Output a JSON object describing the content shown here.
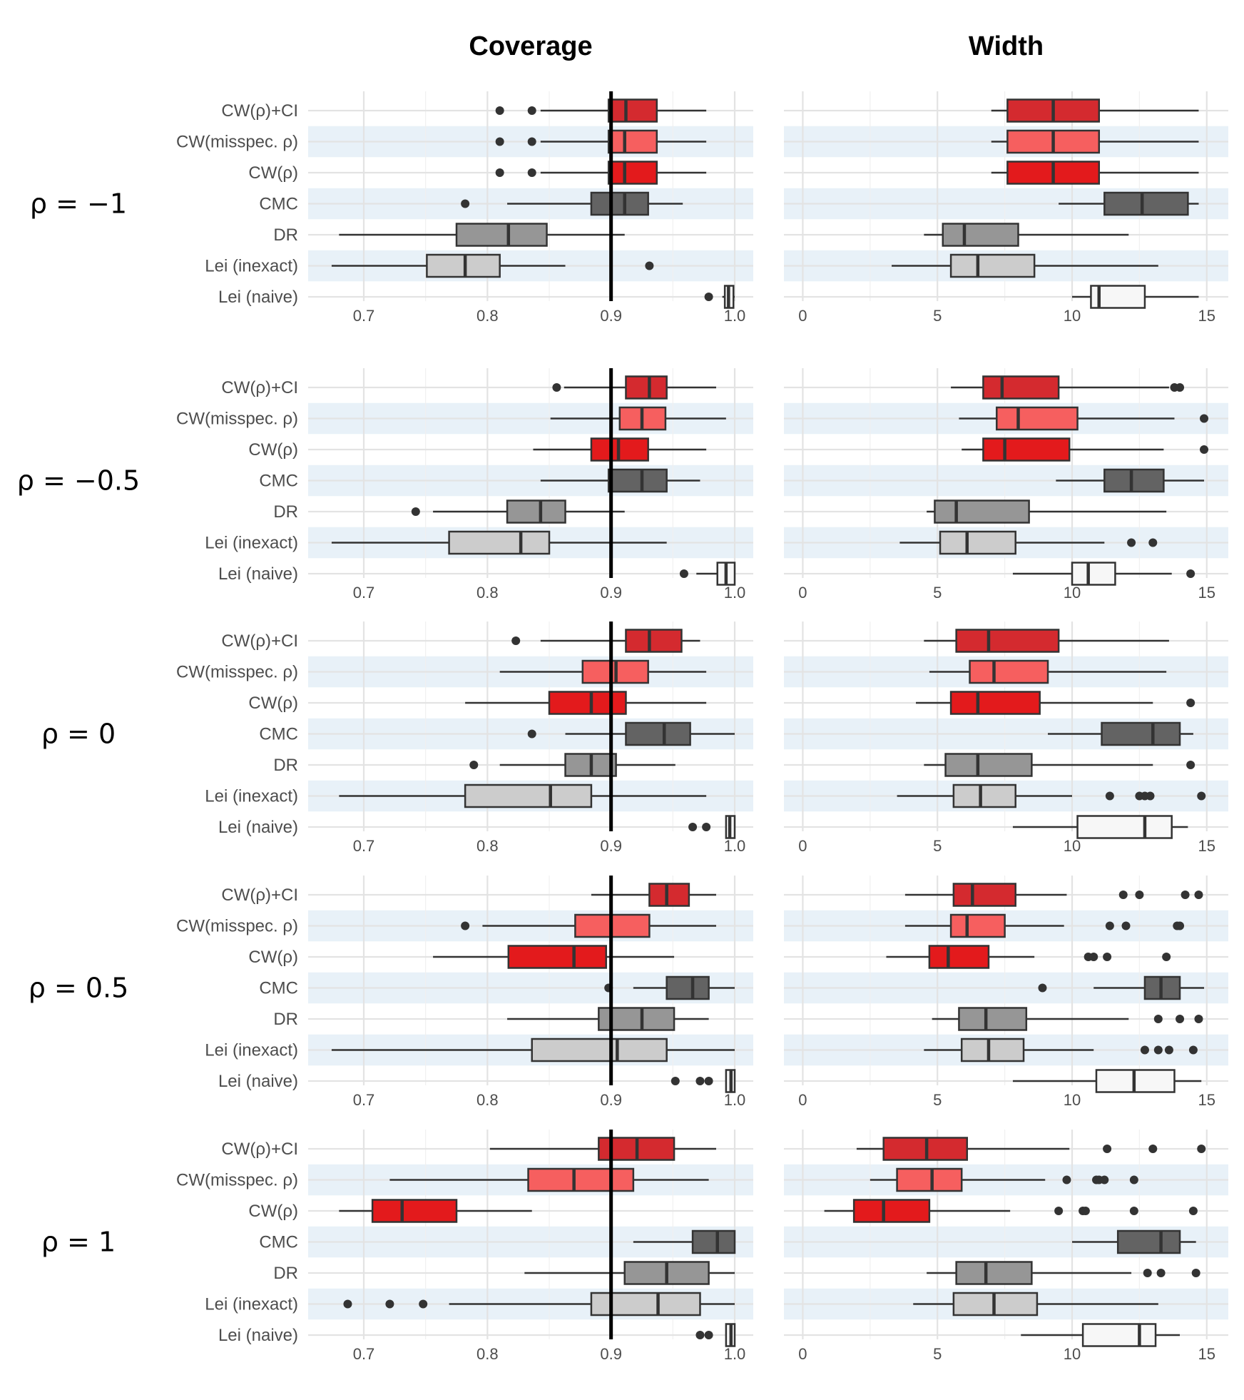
{
  "chart_data": {
    "type": "boxplot",
    "title": "",
    "column_titles": [
      "Coverage",
      "Width"
    ],
    "row_labels": [
      "ρ = −1",
      "ρ = −0.5",
      "ρ = 0",
      "ρ = 0.5",
      "ρ = 1"
    ],
    "methods": [
      "CW(ρ)+CI",
      "CW(misspec. ρ)",
      "CW(ρ)",
      "CMC",
      "DR",
      "Lei (inexact)",
      "Lei (naive)"
    ],
    "colors": {
      "CW(ρ)+CI": "#d42a2f",
      "CW(misspec. ρ)": "#f65f5f",
      "CW(ρ)": "#e31a1c",
      "CMC": "#636363",
      "DR": "#969696",
      "Lei (inexact)": "#cccccc",
      "Lei (naive)": "#f7f7f7"
    },
    "band_color": "#e8f1f8",
    "reference_line": {
      "panel": "Coverage",
      "x": 0.9
    },
    "axes": {
      "Coverage": {
        "xlim": [
          0.655,
          1.015
        ],
        "ticks": [
          0.7,
          0.8,
          0.9,
          1.0
        ],
        "tick_labels": [
          "0.7",
          "0.8",
          "0.9",
          "1.0"
        ]
      },
      "Width": {
        "xlim": [
          -0.7,
          15.8
        ],
        "ticks": [
          0,
          5,
          10,
          15
        ],
        "tick_labels": [
          "0",
          "5",
          "10",
          "15"
        ]
      }
    },
    "coverage": [
      [
        {
          "lw": 0.843,
          "q1": 0.898,
          "med": 0.912,
          "q3": 0.937,
          "uw": 0.977,
          "out": [
            0.81,
            0.836
          ]
        },
        {
          "lw": 0.843,
          "q1": 0.898,
          "med": 0.911,
          "q3": 0.937,
          "uw": 0.977,
          "out": [
            0.81,
            0.836
          ]
        },
        {
          "lw": 0.843,
          "q1": 0.898,
          "med": 0.911,
          "q3": 0.937,
          "uw": 0.977,
          "out": [
            0.81,
            0.836
          ]
        },
        {
          "lw": 0.816,
          "q1": 0.884,
          "med": 0.911,
          "q3": 0.93,
          "uw": 0.958,
          "out": [
            0.782
          ]
        },
        {
          "lw": 0.68,
          "q1": 0.775,
          "med": 0.817,
          "q3": 0.848,
          "uw": 0.911,
          "out": []
        },
        {
          "lw": 0.674,
          "q1": 0.751,
          "med": 0.782,
          "q3": 0.81,
          "uw": 0.863,
          "out": [
            0.931
          ]
        },
        {
          "lw": 0.99,
          "q1": 0.992,
          "med": 0.995,
          "q3": 0.999,
          "uw": 1.0,
          "out": [
            0.979
          ]
        }
      ],
      [
        {
          "lw": 0.862,
          "q1": 0.912,
          "med": 0.931,
          "q3": 0.945,
          "uw": 0.985,
          "out": [
            0.856
          ]
        },
        {
          "lw": 0.851,
          "q1": 0.907,
          "med": 0.925,
          "q3": 0.944,
          "uw": 0.993,
          "out": []
        },
        {
          "lw": 0.837,
          "q1": 0.884,
          "med": 0.906,
          "q3": 0.93,
          "uw": 0.977,
          "out": []
        },
        {
          "lw": 0.843,
          "q1": 0.898,
          "med": 0.925,
          "q3": 0.945,
          "uw": 0.972,
          "out": []
        },
        {
          "lw": 0.756,
          "q1": 0.816,
          "med": 0.843,
          "q3": 0.863,
          "uw": 0.911,
          "out": [
            0.742
          ]
        },
        {
          "lw": 0.674,
          "q1": 0.769,
          "med": 0.827,
          "q3": 0.85,
          "uw": 0.945,
          "out": []
        },
        {
          "lw": 0.969,
          "q1": 0.986,
          "med": 0.993,
          "q3": 1.0,
          "uw": 1.0,
          "out": [
            0.959
          ]
        }
      ],
      [
        {
          "lw": 0.843,
          "q1": 0.912,
          "med": 0.931,
          "q3": 0.957,
          "uw": 0.972,
          "out": [
            0.823
          ]
        },
        {
          "lw": 0.81,
          "q1": 0.877,
          "med": 0.904,
          "q3": 0.93,
          "uw": 0.977,
          "out": []
        },
        {
          "lw": 0.782,
          "q1": 0.85,
          "med": 0.884,
          "q3": 0.912,
          "uw": 0.977,
          "out": []
        },
        {
          "lw": 0.863,
          "q1": 0.912,
          "med": 0.943,
          "q3": 0.964,
          "uw": 1.0,
          "out": [
            0.836
          ]
        },
        {
          "lw": 0.81,
          "q1": 0.863,
          "med": 0.884,
          "q3": 0.904,
          "uw": 0.952,
          "out": [
            0.789
          ]
        },
        {
          "lw": 0.68,
          "q1": 0.782,
          "med": 0.851,
          "q3": 0.884,
          "uw": 0.977,
          "out": []
        },
        {
          "lw": 0.993,
          "q1": 0.993,
          "med": 0.996,
          "q3": 1.0,
          "uw": 1.0,
          "out": [
            0.966,
            0.977
          ]
        }
      ],
      [
        {
          "lw": 0.884,
          "q1": 0.931,
          "med": 0.945,
          "q3": 0.963,
          "uw": 0.985,
          "out": []
        },
        {
          "lw": 0.796,
          "q1": 0.871,
          "med": 0.9,
          "q3": 0.931,
          "uw": 0.985,
          "out": [
            0.782
          ]
        },
        {
          "lw": 0.756,
          "q1": 0.817,
          "med": 0.87,
          "q3": 0.896,
          "uw": 0.951,
          "out": []
        },
        {
          "lw": 0.918,
          "q1": 0.945,
          "med": 0.966,
          "q3": 0.979,
          "uw": 1.0,
          "out": [
            0.898
          ]
        },
        {
          "lw": 0.816,
          "q1": 0.89,
          "med": 0.925,
          "q3": 0.951,
          "uw": 0.979,
          "out": []
        },
        {
          "lw": 0.674,
          "q1": 0.836,
          "med": 0.905,
          "q3": 0.945,
          "uw": 1.0,
          "out": []
        },
        {
          "lw": 0.993,
          "q1": 0.993,
          "med": 0.997,
          "q3": 1.0,
          "uw": 1.0,
          "out": [
            0.952,
            0.972,
            0.979
          ]
        }
      ],
      [
        {
          "lw": 0.802,
          "q1": 0.89,
          "med": 0.921,
          "q3": 0.951,
          "uw": 0.985,
          "out": []
        },
        {
          "lw": 0.721,
          "q1": 0.833,
          "med": 0.87,
          "q3": 0.918,
          "uw": 0.979,
          "out": []
        },
        {
          "lw": 0.68,
          "q1": 0.707,
          "med": 0.731,
          "q3": 0.775,
          "uw": 0.836,
          "out": []
        },
        {
          "lw": 0.918,
          "q1": 0.966,
          "med": 0.986,
          "q3": 1.0,
          "uw": 1.0,
          "out": []
        },
        {
          "lw": 0.83,
          "q1": 0.911,
          "med": 0.945,
          "q3": 0.979,
          "uw": 1.0,
          "out": []
        },
        {
          "lw": 0.769,
          "q1": 0.884,
          "med": 0.938,
          "q3": 0.972,
          "uw": 1.0,
          "out": [
            0.687,
            0.721,
            0.748
          ]
        },
        {
          "lw": 0.993,
          "q1": 0.993,
          "med": 0.997,
          "q3": 1.0,
          "uw": 1.0,
          "out": [
            0.972,
            0.979
          ]
        }
      ]
    ],
    "width": [
      [
        {
          "lw": 7.0,
          "q1": 7.6,
          "med": 9.3,
          "q3": 11.0,
          "uw": 14.7,
          "out": []
        },
        {
          "lw": 7.0,
          "q1": 7.6,
          "med": 9.3,
          "q3": 11.0,
          "uw": 14.7,
          "out": []
        },
        {
          "lw": 7.0,
          "q1": 7.6,
          "med": 9.3,
          "q3": 11.0,
          "uw": 14.7,
          "out": []
        },
        {
          "lw": 9.5,
          "q1": 11.2,
          "med": 12.6,
          "q3": 14.3,
          "uw": 14.7,
          "out": []
        },
        {
          "lw": 4.5,
          "q1": 5.2,
          "med": 6.0,
          "q3": 8.0,
          "uw": 12.1,
          "out": []
        },
        {
          "lw": 3.3,
          "q1": 5.5,
          "med": 6.5,
          "q3": 8.6,
          "uw": 13.2,
          "out": []
        },
        {
          "lw": 10.0,
          "q1": 10.7,
          "med": 11.0,
          "q3": 12.7,
          "uw": 14.7,
          "out": []
        }
      ],
      [
        {
          "lw": 5.5,
          "q1": 6.7,
          "med": 7.4,
          "q3": 9.5,
          "uw": 13.6,
          "out": [
            13.8,
            14.0
          ]
        },
        {
          "lw": 5.8,
          "q1": 7.2,
          "med": 8.0,
          "q3": 10.2,
          "uw": 13.8,
          "out": [
            14.9
          ]
        },
        {
          "lw": 5.9,
          "q1": 6.7,
          "med": 7.5,
          "q3": 9.9,
          "uw": 13.4,
          "out": [
            14.9
          ]
        },
        {
          "lw": 9.4,
          "q1": 11.2,
          "med": 12.2,
          "q3": 13.4,
          "uw": 14.9,
          "out": []
        },
        {
          "lw": 4.6,
          "q1": 4.9,
          "med": 5.7,
          "q3": 8.4,
          "uw": 13.5,
          "out": []
        },
        {
          "lw": 3.6,
          "q1": 5.1,
          "med": 6.1,
          "q3": 7.9,
          "uw": 11.2,
          "out": [
            12.2,
            13.0
          ]
        },
        {
          "lw": 7.8,
          "q1": 10.0,
          "med": 10.6,
          "q3": 11.6,
          "uw": 13.7,
          "out": [
            14.4
          ]
        }
      ],
      [
        {
          "lw": 4.5,
          "q1": 5.7,
          "med": 6.9,
          "q3": 9.5,
          "uw": 13.6,
          "out": []
        },
        {
          "lw": 4.7,
          "q1": 6.2,
          "med": 7.1,
          "q3": 9.1,
          "uw": 13.5,
          "out": []
        },
        {
          "lw": 4.2,
          "q1": 5.5,
          "med": 6.5,
          "q3": 8.8,
          "uw": 13.0,
          "out": [
            14.4
          ]
        },
        {
          "lw": 9.1,
          "q1": 11.1,
          "med": 13.0,
          "q3": 14.0,
          "uw": 14.5,
          "out": []
        },
        {
          "lw": 4.5,
          "q1": 5.3,
          "med": 6.5,
          "q3": 8.5,
          "uw": 13.0,
          "out": [
            14.4
          ]
        },
        {
          "lw": 3.5,
          "q1": 5.6,
          "med": 6.6,
          "q3": 7.9,
          "uw": 10.0,
          "out": [
            11.4,
            12.5,
            12.7,
            12.9,
            14.8
          ]
        },
        {
          "lw": 7.8,
          "q1": 10.2,
          "med": 12.7,
          "q3": 13.7,
          "uw": 14.3,
          "out": []
        }
      ],
      [
        {
          "lw": 3.8,
          "q1": 5.6,
          "med": 6.3,
          "q3": 7.9,
          "uw": 9.8,
          "out": [
            11.9,
            12.5,
            14.2,
            14.7
          ]
        },
        {
          "lw": 3.8,
          "q1": 5.5,
          "med": 6.1,
          "q3": 7.5,
          "uw": 9.7,
          "out": [
            11.4,
            12.0,
            13.9,
            14.0
          ]
        },
        {
          "lw": 3.1,
          "q1": 4.7,
          "med": 5.4,
          "q3": 6.9,
          "uw": 8.6,
          "out": [
            10.6,
            10.8,
            11.3,
            13.5
          ]
        },
        {
          "lw": 10.8,
          "q1": 12.7,
          "med": 13.3,
          "q3": 14.0,
          "uw": 14.9,
          "out": [
            8.9
          ]
        },
        {
          "lw": 4.8,
          "q1": 5.8,
          "med": 6.8,
          "q3": 8.3,
          "uw": 12.1,
          "out": [
            13.2,
            14.0,
            14.7
          ]
        },
        {
          "lw": 4.5,
          "q1": 5.9,
          "med": 6.9,
          "q3": 8.2,
          "uw": 10.8,
          "out": [
            12.7,
            13.2,
            13.6,
            14.5
          ]
        },
        {
          "lw": 7.8,
          "q1": 10.9,
          "med": 12.3,
          "q3": 13.8,
          "uw": 14.8,
          "out": []
        }
      ],
      [
        {
          "lw": 2.0,
          "q1": 3.0,
          "med": 4.6,
          "q3": 6.1,
          "uw": 9.9,
          "out": [
            11.3,
            13.0,
            14.8
          ]
        },
        {
          "lw": 2.5,
          "q1": 3.5,
          "med": 4.8,
          "q3": 5.9,
          "uw": 9.0,
          "out": [
            9.8,
            10.9,
            11.0,
            11.2,
            12.3
          ]
        },
        {
          "lw": 0.8,
          "q1": 1.9,
          "med": 3.0,
          "q3": 4.7,
          "uw": 7.7,
          "out": [
            9.5,
            10.4,
            10.5,
            12.3,
            14.5
          ]
        },
        {
          "lw": 10.0,
          "q1": 11.7,
          "med": 13.3,
          "q3": 14.0,
          "uw": 14.6,
          "out": []
        },
        {
          "lw": 4.6,
          "q1": 5.7,
          "med": 6.8,
          "q3": 8.5,
          "uw": 12.2,
          "out": [
            12.8,
            13.3,
            14.6
          ]
        },
        {
          "lw": 4.1,
          "q1": 5.6,
          "med": 7.1,
          "q3": 8.7,
          "uw": 13.2,
          "out": []
        },
        {
          "lw": 8.1,
          "q1": 10.4,
          "med": 12.5,
          "q3": 13.1,
          "uw": 14.0,
          "out": []
        }
      ]
    ]
  }
}
